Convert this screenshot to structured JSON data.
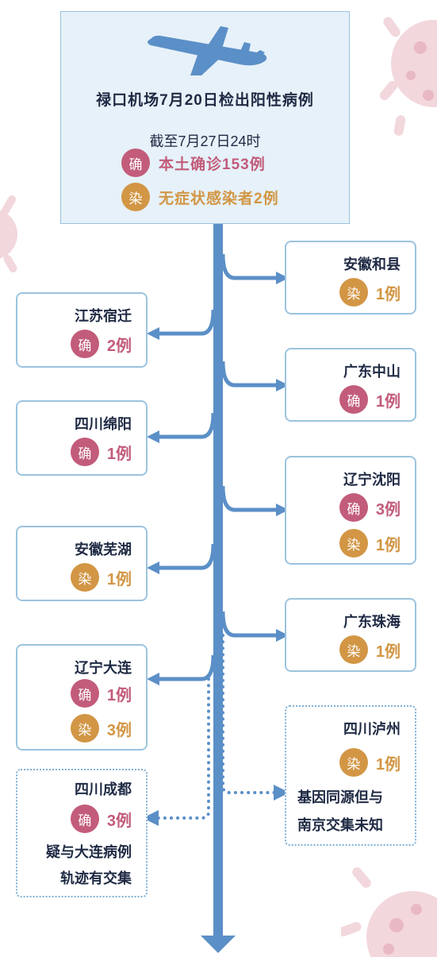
{
  "colors": {
    "accent_blue": "#5b8fc7",
    "confirmed": "#c25c7a",
    "asymptomatic": "#d29645",
    "border": "#9cc3df"
  },
  "header": {
    "title": "禄口机场7月20日检出阳性病例",
    "date": "截至7月27日24时",
    "confirmed_badge": "确",
    "confirmed_text": "本土确诊153例",
    "asym_badge": "染",
    "asym_text": "无症状感染者2例"
  },
  "badge_labels": {
    "confirmed": "确",
    "asymptomatic": "染"
  },
  "cities": [
    {
      "name": "安徽和县",
      "side": "right",
      "stats": [
        {
          "type": "asymptomatic",
          "count": "1例"
        }
      ]
    },
    {
      "name": "江苏宿迁",
      "side": "left",
      "stats": [
        {
          "type": "confirmed",
          "count": "2例"
        }
      ]
    },
    {
      "name": "广东中山",
      "side": "right",
      "stats": [
        {
          "type": "confirmed",
          "count": "1例"
        }
      ]
    },
    {
      "name": "四川绵阳",
      "side": "left",
      "stats": [
        {
          "type": "confirmed",
          "count": "1例"
        }
      ]
    },
    {
      "name": "辽宁沈阳",
      "side": "right",
      "stats": [
        {
          "type": "confirmed",
          "count": "3例"
        },
        {
          "type": "asymptomatic",
          "count": "1例"
        }
      ]
    },
    {
      "name": "安徽芜湖",
      "side": "left",
      "stats": [
        {
          "type": "asymptomatic",
          "count": "1例"
        }
      ]
    },
    {
      "name": "广东珠海",
      "side": "right",
      "stats": [
        {
          "type": "asymptomatic",
          "count": "1例"
        }
      ]
    },
    {
      "name": "辽宁大连",
      "side": "left",
      "stats": [
        {
          "type": "confirmed",
          "count": "1例"
        },
        {
          "type": "asymptomatic",
          "count": "3例"
        }
      ]
    }
  ],
  "luzhou": {
    "name": "四川泸州",
    "type": "asymptomatic",
    "count": "1例",
    "note_line1": "基因同源但与",
    "note_line2": "南京交集未知"
  },
  "chengdu": {
    "name": "四川成都",
    "type": "confirmed",
    "count": "3例",
    "note_line1": "疑与大连病例",
    "note_line2": "轨迹有交集"
  }
}
